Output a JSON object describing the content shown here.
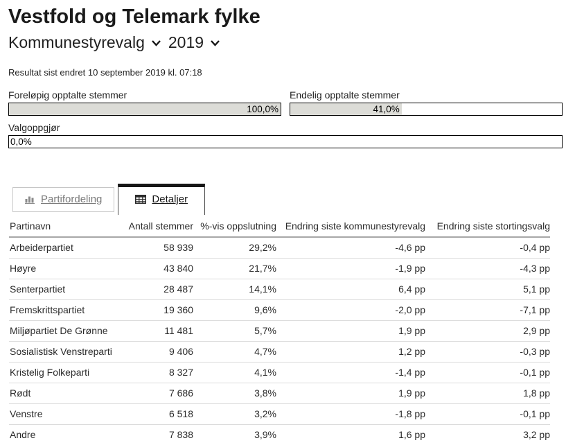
{
  "header": {
    "title": "Vestfold og Telemark fylke",
    "election_type": "Kommunestyrevalg",
    "year": "2019",
    "status": "Resultat sist endret 10 september 2019 kl. 07:18"
  },
  "progress": [
    {
      "label": "Foreløpig opptalte stemmer",
      "value": "100,0%",
      "pct": 100
    },
    {
      "label": "Endelig opptalte stemmer",
      "value": "41,0%",
      "pct": 41
    },
    {
      "label": "Valgoppgjør",
      "value": "0,0%",
      "pct": 0
    }
  ],
  "tabs": [
    {
      "label": "Partifordeling",
      "icon": "bar-chart-icon",
      "active": false
    },
    {
      "label": "Detaljer",
      "icon": "table-icon",
      "active": true
    }
  ],
  "table": {
    "columns": [
      "Partinavn",
      "Antall stemmer",
      "%-vis oppslutning",
      "Endring siste kommunestyrevalg",
      "Endring siste stortingsvalg"
    ],
    "rows": [
      [
        "Arbeiderpartiet",
        "58 939",
        "29,2%",
        "-4,6 pp",
        "-0,4 pp"
      ],
      [
        "Høyre",
        "43 840",
        "21,7%",
        "-1,9 pp",
        "-4,3 pp"
      ],
      [
        "Senterpartiet",
        "28 487",
        "14,1%",
        "6,4 pp",
        "5,1 pp"
      ],
      [
        "Fremskrittspartiet",
        "19 360",
        "9,6%",
        "-2,0 pp",
        "-7,1 pp"
      ],
      [
        "Miljøpartiet De Grønne",
        "11 481",
        "5,7%",
        "1,9 pp",
        "2,9 pp"
      ],
      [
        "Sosialistisk Venstreparti",
        "9 406",
        "4,7%",
        "1,2 pp",
        "-0,3 pp"
      ],
      [
        "Kristelig Folkeparti",
        "8 327",
        "4,1%",
        "-1,4 pp",
        "-0,1 pp"
      ],
      [
        "Rødt",
        "7 686",
        "3,8%",
        "1,9 pp",
        "1,8 pp"
      ],
      [
        "Venstre",
        "6 518",
        "3,2%",
        "-1,8 pp",
        "-0,1 pp"
      ],
      [
        "Andre",
        "7 838",
        "3,9%",
        "1,6 pp",
        "3,2 pp"
      ]
    ]
  },
  "icons": {
    "dropdown": "chevron-down-icon",
    "tab_partifordeling": "bar-chart-icon",
    "tab_detaljer": "table-icon"
  },
  "colors": {
    "bar_fill": "#dcdcd7",
    "bar_border": "#000000",
    "tab_active_border": "#161616",
    "inactive_tab_text": "#7a7a7a",
    "row_divider": "#dcdcdc",
    "header_divider": "#a7a7a7"
  }
}
